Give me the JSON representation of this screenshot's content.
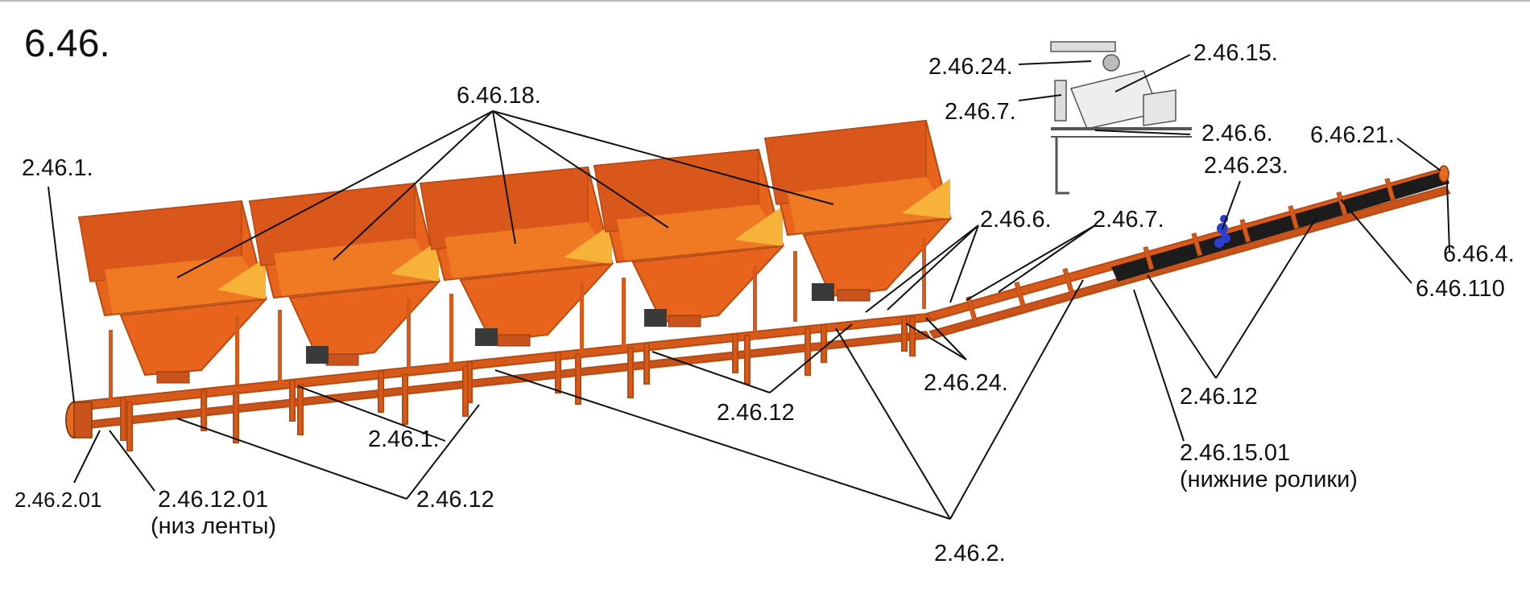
{
  "figure_number": "6.46.",
  "labels": {
    "hoppers": "6.46.18.",
    "frame_end_left": "2.46.1.",
    "frame_mid": "2.46.1.",
    "end_drum": "2.46.2.01",
    "belt_bottom_code": "2.46.12.01",
    "belt_bottom_note": "(низ ленты)",
    "rollers_left": "2.46.12",
    "rollers_mid": "2.46.12",
    "rollers_right": "2.46.12",
    "support_frame": "2.46.2.",
    "bracket_a": "2.46.6.",
    "bracket_b": "2.46.7.",
    "scraper": "2.46.24.",
    "lower_rollers_code": "2.46.15.01",
    "lower_rollers_note": "(нижние ролики)",
    "coupling": "2.46.23.",
    "head_drum": "6.46.21.",
    "head_end": "6.46.4.",
    "belt": "6.46.110",
    "detail_scraper": "2.46.24.",
    "detail_bracket_b": "2.46.7.",
    "detail_roller_set": "2.46.15.",
    "detail_bracket_a": "2.46.6."
  },
  "colors": {
    "hopper_front": "#e8641c",
    "hopper_side": "#d9571a",
    "hopper_inside": "#f07a24",
    "hopper_accent": "#f7b23a",
    "frame": "#d85a1a",
    "belt": "#1c1c1c",
    "coupling": "#2a3fd0",
    "motor": "#3a3a3a",
    "leader": "#111111",
    "detail": "#777777"
  }
}
